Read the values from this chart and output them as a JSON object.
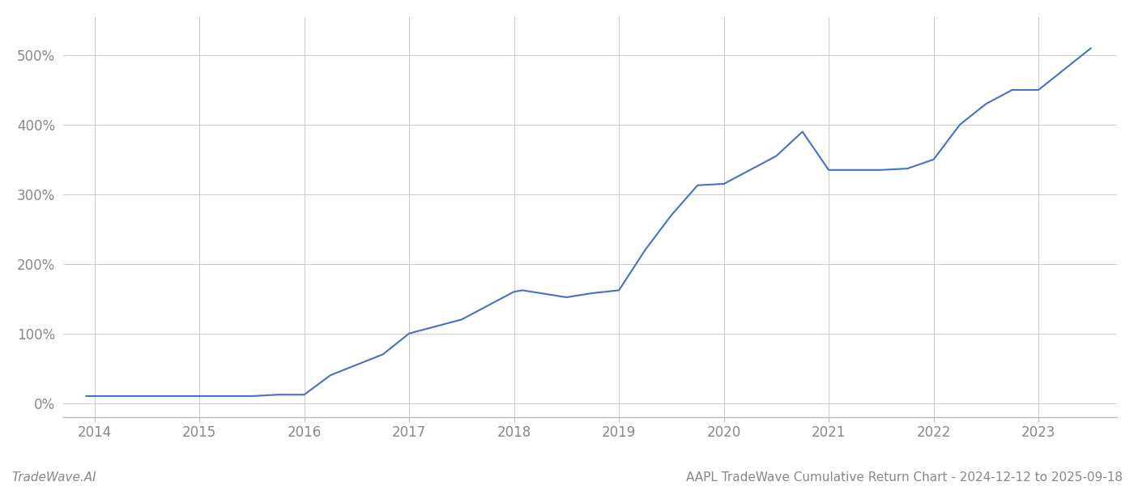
{
  "title": "AAPL TradeWave Cumulative Return Chart - 2024-12-12 to 2025-09-18",
  "watermark": "TradeWave.AI",
  "line_color": "#4472c4",
  "background_color": "#ffffff",
  "grid_color": "#cccccc",
  "x_years": [
    2014,
    2015,
    2016,
    2017,
    2018,
    2019,
    2020,
    2021,
    2022,
    2023
  ],
  "data_x": [
    2013.92,
    2014.0,
    2014.5,
    2014.75,
    2015.0,
    2015.5,
    2015.75,
    2016.0,
    2016.25,
    2016.5,
    2016.75,
    2017.0,
    2017.25,
    2017.5,
    2017.75,
    2018.0,
    2018.08,
    2018.5,
    2018.75,
    2019.0,
    2019.25,
    2019.5,
    2019.75,
    2020.0,
    2020.5,
    2020.75,
    2021.0,
    2021.5,
    2021.75,
    2022.0,
    2022.25,
    2022.5,
    2022.75,
    2023.0,
    2023.5
  ],
  "data_y": [
    10,
    10,
    10,
    10,
    10,
    10,
    12,
    12,
    40,
    55,
    70,
    100,
    110,
    120,
    140,
    160,
    162,
    152,
    158,
    162,
    220,
    270,
    313,
    315,
    355,
    390,
    335,
    335,
    337,
    350,
    400,
    430,
    450,
    450,
    510
  ],
  "ylim": [
    -20,
    555
  ],
  "xlim": [
    2013.7,
    2023.75
  ],
  "yticks": [
    0,
    100,
    200,
    300,
    400,
    500
  ],
  "tick_fontsize": 12,
  "title_fontsize": 11,
  "watermark_fontsize": 11,
  "tick_label_color": "#888888",
  "line_width": 1.5
}
